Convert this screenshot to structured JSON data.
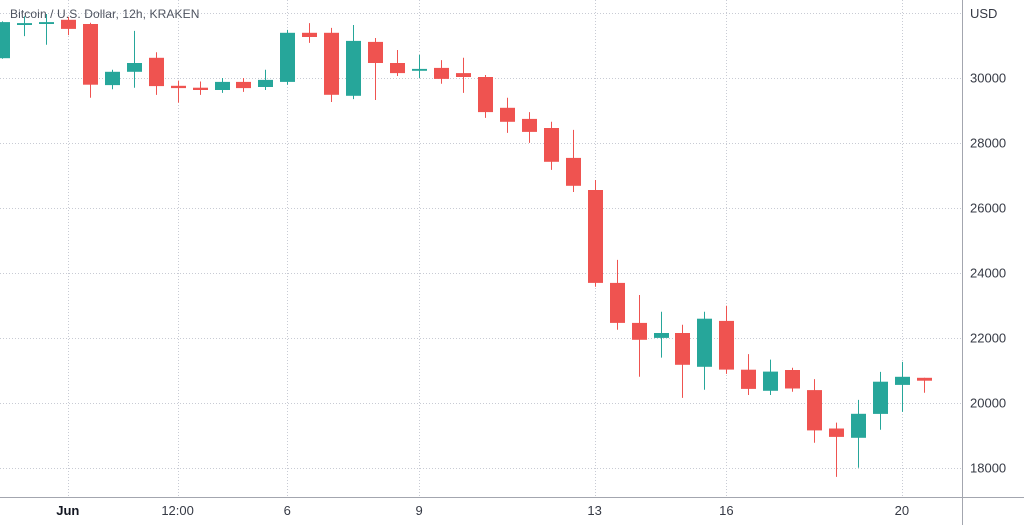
{
  "header": {
    "symbol_title": "Bitcoin / U.S. Dollar, 12h, KRAKEN"
  },
  "colors": {
    "up": "#26a69a",
    "down": "#ef5350",
    "grid": "#c8cbd4",
    "axis_border": "#a3a6af",
    "axis_text": "#363a45",
    "month_text": "#131722",
    "title_text": "#4f5460",
    "background": "#ffffff"
  },
  "chart_data": {
    "type": "candlestick",
    "title": "Bitcoin / U.S. Dollar, 12h, KRAKEN",
    "symbol": "Bitcoin / U.S. Dollar",
    "interval": "12h",
    "exchange": "KRAKEN",
    "currency_label": "USD",
    "grid": true,
    "ylim": [
      17100,
      32400
    ],
    "y_axis": {
      "tick_values": [
        30000,
        28000,
        26000,
        24000,
        22000,
        20000,
        18000
      ],
      "gridline_values": [
        32000,
        30000,
        28000,
        26000,
        24000,
        22000,
        20000,
        18000
      ]
    },
    "x_axis": {
      "ticks": [
        {
          "index": 3,
          "label": "Jun",
          "is_month": true
        },
        {
          "index": 8,
          "label": "12:00",
          "is_month": false
        },
        {
          "index": 13,
          "label": "6",
          "is_month": false
        },
        {
          "index": 19,
          "label": "9",
          "is_month": false
        },
        {
          "index": 27,
          "label": "13",
          "is_month": false
        },
        {
          "index": 33,
          "label": "16",
          "is_month": false
        },
        {
          "index": 41,
          "label": "20",
          "is_month": false
        }
      ]
    },
    "candles": {
      "format": [
        "open",
        "high",
        "low",
        "close"
      ],
      "ohlc": [
        [
          30610,
          31740,
          30590,
          31720
        ],
        [
          31630,
          31900,
          31290,
          31690
        ],
        [
          31660,
          31970,
          31020,
          31720
        ],
        [
          31790,
          31880,
          31320,
          31510
        ],
        [
          31660,
          31700,
          29390,
          29790
        ],
        [
          29780,
          30250,
          29650,
          30190
        ],
        [
          30190,
          31450,
          29700,
          30460
        ],
        [
          30620,
          30790,
          29480,
          29750
        ],
        [
          29760,
          29920,
          29240,
          29690
        ],
        [
          29700,
          29890,
          29480,
          29630
        ],
        [
          29630,
          30000,
          29540,
          29880
        ],
        [
          29880,
          30000,
          29570,
          29690
        ],
        [
          29720,
          30250,
          29630,
          29940
        ],
        [
          29880,
          31480,
          29790,
          31390
        ],
        [
          31390,
          31690,
          31080,
          31260
        ],
        [
          31390,
          31540,
          29260,
          29480
        ],
        [
          29450,
          31630,
          29350,
          31140
        ],
        [
          31110,
          31230,
          29320,
          30460
        ],
        [
          30460,
          30860,
          30060,
          30150
        ],
        [
          30220,
          30710,
          30000,
          30280
        ],
        [
          30310,
          30550,
          29820,
          29970
        ],
        [
          30150,
          30620,
          29540,
          30030
        ],
        [
          30030,
          30090,
          28770,
          28950
        ],
        [
          29080,
          29390,
          28310,
          28650
        ],
        [
          28740,
          28950,
          28000,
          28340
        ],
        [
          28460,
          28650,
          27170,
          27420
        ],
        [
          27540,
          28400,
          26490,
          26680
        ],
        [
          26550,
          26860,
          23570,
          23690
        ],
        [
          23690,
          24400,
          22250,
          22460
        ],
        [
          22460,
          23320,
          20800,
          21940
        ],
        [
          22000,
          22800,
          21390,
          22150
        ],
        [
          22150,
          22400,
          20150,
          21170
        ],
        [
          21110,
          22800,
          20400,
          22590
        ],
        [
          22520,
          22990,
          20890,
          21020
        ],
        [
          21020,
          21500,
          20240,
          20430
        ],
        [
          20370,
          21330,
          20240,
          20960
        ],
        [
          21010,
          21080,
          20340,
          20440
        ],
        [
          20390,
          20730,
          18770,
          19150
        ],
        [
          19210,
          19390,
          17720,
          18950
        ],
        [
          18920,
          20090,
          18000,
          19660
        ],
        [
          19660,
          20950,
          19170,
          20650
        ],
        [
          20550,
          21260,
          19720,
          20800
        ],
        [
          20770,
          20770,
          20310,
          20680
        ]
      ]
    }
  }
}
